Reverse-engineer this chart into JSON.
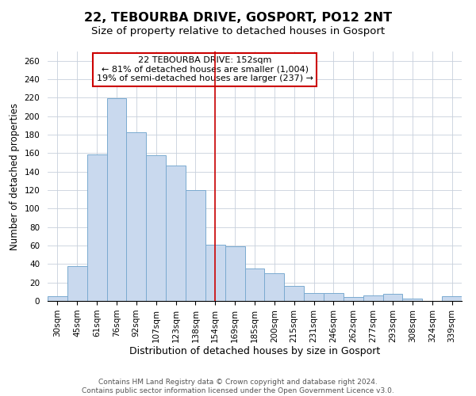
{
  "title": "22, TEBOURBA DRIVE, GOSPORT, PO12 2NT",
  "subtitle": "Size of property relative to detached houses in Gosport",
  "xlabel": "Distribution of detached houses by size in Gosport",
  "ylabel": "Number of detached properties",
  "bar_labels": [
    "30sqm",
    "45sqm",
    "61sqm",
    "76sqm",
    "92sqm",
    "107sqm",
    "123sqm",
    "138sqm",
    "154sqm",
    "169sqm",
    "185sqm",
    "200sqm",
    "215sqm",
    "231sqm",
    "246sqm",
    "262sqm",
    "277sqm",
    "293sqm",
    "308sqm",
    "324sqm",
    "339sqm"
  ],
  "bar_values": [
    5,
    38,
    159,
    219,
    183,
    158,
    147,
    120,
    61,
    59,
    35,
    30,
    16,
    9,
    9,
    4,
    6,
    8,
    3,
    0,
    5
  ],
  "bar_color": "#c9d9ee",
  "bar_edge_color": "#7aaad0",
  "vline_index": 8,
  "vline_color": "#cc0000",
  "annotation_title": "22 TEBOURBA DRIVE: 152sqm",
  "annotation_line1": "← 81% of detached houses are smaller (1,004)",
  "annotation_line2": "19% of semi-detached houses are larger (237) →",
  "annotation_box_color": "#ffffff",
  "annotation_box_edge_color": "#cc0000",
  "ylim": [
    0,
    270
  ],
  "yticks": [
    0,
    20,
    40,
    60,
    80,
    100,
    120,
    140,
    160,
    180,
    200,
    220,
    240,
    260
  ],
  "footer1": "Contains HM Land Registry data © Crown copyright and database right 2024.",
  "footer2": "Contains public sector information licensed under the Open Government Licence v3.0.",
  "title_fontsize": 11.5,
  "subtitle_fontsize": 9.5,
  "xlabel_fontsize": 9,
  "ylabel_fontsize": 8.5,
  "tick_fontsize": 7.5,
  "annotation_fontsize": 8,
  "footer_fontsize": 6.5,
  "bg_color": "#f0f4f8"
}
